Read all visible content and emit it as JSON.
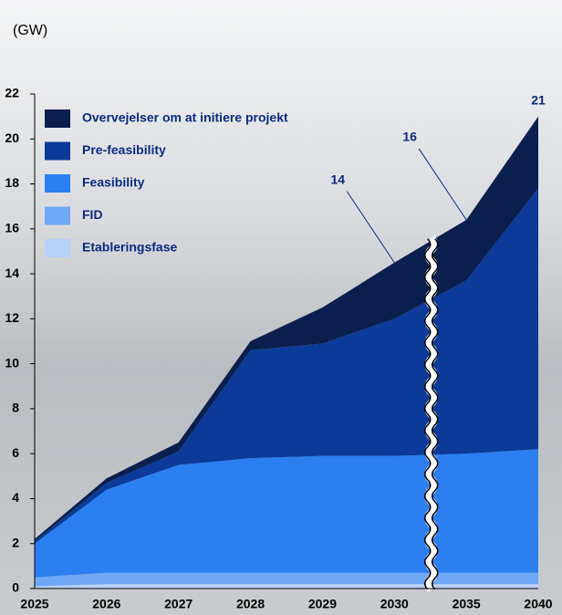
{
  "chart_data": {
    "type": "stacked_area",
    "y_label": "(GW)",
    "categories": [
      "2025",
      "2026",
      "2027",
      "2028",
      "2029",
      "2030",
      "2035",
      "2040"
    ],
    "series": [
      {
        "name": "Overvejelser om at initiere projekt",
        "color": "#0b1f4e",
        "values": [
          0.1,
          0.2,
          0.4,
          0.4,
          1.6,
          2.5,
          2.7,
          3.2
        ]
      },
      {
        "name": "Pre-feasibility",
        "color": "#0b3a98",
        "values": [
          0.1,
          0.3,
          0.6,
          4.8,
          5.0,
          6.1,
          7.7,
          11.6
        ]
      },
      {
        "name": "Feasibility",
        "color": "#2b7ff0",
        "values": [
          1.5,
          3.7,
          4.8,
          5.1,
          5.2,
          5.2,
          5.3,
          5.5
        ]
      },
      {
        "name": "FID",
        "color": "#6fa8f6",
        "values": [
          0.4,
          0.5,
          0.5,
          0.5,
          0.5,
          0.5,
          0.5,
          0.5
        ]
      },
      {
        "name": "Etableringsfase",
        "color": "#b7d1f8",
        "values": [
          0.1,
          0.2,
          0.2,
          0.2,
          0.2,
          0.2,
          0.2,
          0.2
        ]
      }
    ],
    "annotations": [
      {
        "text": "14",
        "x": "2030",
        "leader": true
      },
      {
        "text": "16",
        "x": "2035",
        "leader": true
      },
      {
        "text": "21",
        "x": "2040",
        "leader": false
      }
    ],
    "axis_break": {
      "after": "2030"
    },
    "ylim": [
      0,
      22
    ],
    "yticks": [
      0,
      2,
      4,
      6,
      8,
      10,
      12,
      14,
      16,
      18,
      20,
      22
    ]
  }
}
